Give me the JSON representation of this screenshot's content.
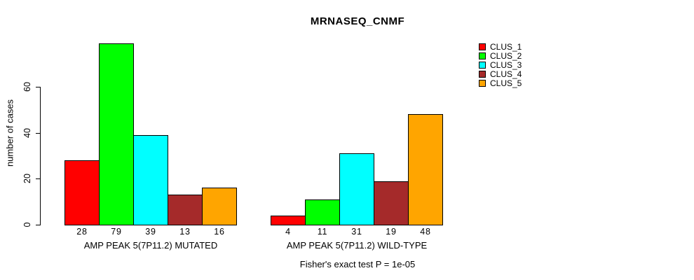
{
  "chart_data": {
    "type": "bar",
    "title": "MRNASEQ_CNMF",
    "ylabel": "number of cases",
    "yticks": [
      0,
      20,
      40,
      60
    ],
    "ylim": [
      0,
      79
    ],
    "grid": false,
    "legend_position": "right",
    "categories": [
      "AMP PEAK 5(7P11.2) MUTATED",
      "AMP PEAK 5(7P11.2) WILD-TYPE"
    ],
    "series": [
      {
        "name": "CLUS_1",
        "color": "#FF0000",
        "values": [
          28,
          4
        ]
      },
      {
        "name": "CLUS_2",
        "color": "#00FF00",
        "values": [
          79,
          11
        ]
      },
      {
        "name": "CLUS_3",
        "color": "#00FFFF",
        "values": [
          39,
          31
        ]
      },
      {
        "name": "CLUS_4",
        "color": "#A52A2A",
        "values": [
          13,
          19
        ]
      },
      {
        "name": "CLUS_5",
        "color": "#FFA500",
        "values": [
          16,
          48
        ]
      }
    ],
    "bar_value_labels": {
      "AMP PEAK 5(7P11.2) MUTATED": [
        28,
        79,
        39,
        13,
        16
      ],
      "AMP PEAK 5(7P11.2) WILD-TYPE": [
        4,
        11,
        31,
        19,
        48
      ]
    },
    "annotation": "Fisher's exact test P = 1e-05"
  }
}
